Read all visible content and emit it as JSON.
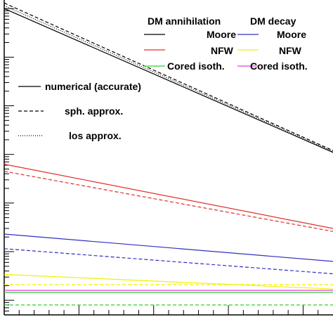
{
  "chart_data": {
    "type": "line",
    "title": "",
    "xlabel": "",
    "ylabel": "",
    "x_range": [
      0,
      1
    ],
    "y_log": true,
    "grid": false,
    "legend": {
      "position": "top-right",
      "annihilation_title": "DM annihilation",
      "decay_title": "DM decay",
      "halo_labels": [
        "Moore",
        "NFW",
        "Cored isoth."
      ],
      "style_labels": [
        "numerical (accurate)",
        "sph. approx.",
        "los approx."
      ]
    },
    "series": [
      {
        "name": "Moore",
        "group": "DM annihilation",
        "method": "numerical (accurate)",
        "color": "#000000",
        "x": [
          0,
          1
        ],
        "y": [
          1.0,
          0.0011
        ]
      },
      {
        "name": "Moore",
        "group": "DM annihilation",
        "method": "sph. approx.",
        "color": "#000000",
        "x": [
          0,
          1
        ],
        "y": [
          1.3,
          0.0012
        ]
      },
      {
        "name": "Moore",
        "group": "DM annihilation",
        "method": "los approx.",
        "color": "#000000",
        "x": [
          0,
          1
        ],
        "y": [
          1.15,
          0.00115
        ]
      },
      {
        "name": "NFW",
        "group": "DM annihilation",
        "method": "numerical (accurate)",
        "color": "#e0302a",
        "x": [
          0,
          1
        ],
        "y": [
          0.00063,
          3e-05
        ]
      },
      {
        "name": "NFW",
        "group": "DM annihilation",
        "method": "sph. approx.",
        "color": "#e0302a",
        "x": [
          0,
          1
        ],
        "y": [
          0.00045,
          2.6e-05
        ]
      },
      {
        "name": "Moore",
        "group": "DM decay",
        "method": "numerical (accurate)",
        "color": "#3030c0",
        "x": [
          0,
          1
        ],
        "y": [
          2.3e-05,
          6.3e-06
        ]
      },
      {
        "name": "Moore",
        "group": "DM decay",
        "method": "sph. approx.",
        "color": "#3030c0",
        "x": [
          0,
          1
        ],
        "y": [
          1.15e-05,
          3.5e-06
        ]
      },
      {
        "name": "NFW",
        "group": "DM decay",
        "method": "numerical (accurate)",
        "color": "#f2f000",
        "x": [
          0,
          1
        ],
        "y": [
          3.4e-06,
          1.7e-06
        ]
      },
      {
        "name": "NFW",
        "group": "DM decay",
        "method": "sph. approx.",
        "color": "#f2f000",
        "x": [
          0,
          1
        ],
        "y": [
          2.1e-06,
          2.1e-06
        ]
      },
      {
        "name": "Cored isoth.",
        "group": "DM decay",
        "method": "numerical (accurate)",
        "color": "#e040e0",
        "x": [
          0,
          1
        ],
        "y": [
          1.6e-06,
          1.6e-06
        ]
      },
      {
        "name": "Cored isoth.",
        "group": "DM annihilation",
        "method": "numerical (accurate)",
        "color": "#30d030",
        "x": [
          0,
          1
        ],
        "y": [
          1.45e-06,
          1.45e-06
        ]
      },
      {
        "name": "Cored isoth.",
        "group": "DM annihilation",
        "method": "sph. approx.",
        "color": "#30d030",
        "x": [
          0,
          1
        ],
        "y": [
          8e-07,
          8e-07
        ]
      }
    ]
  }
}
